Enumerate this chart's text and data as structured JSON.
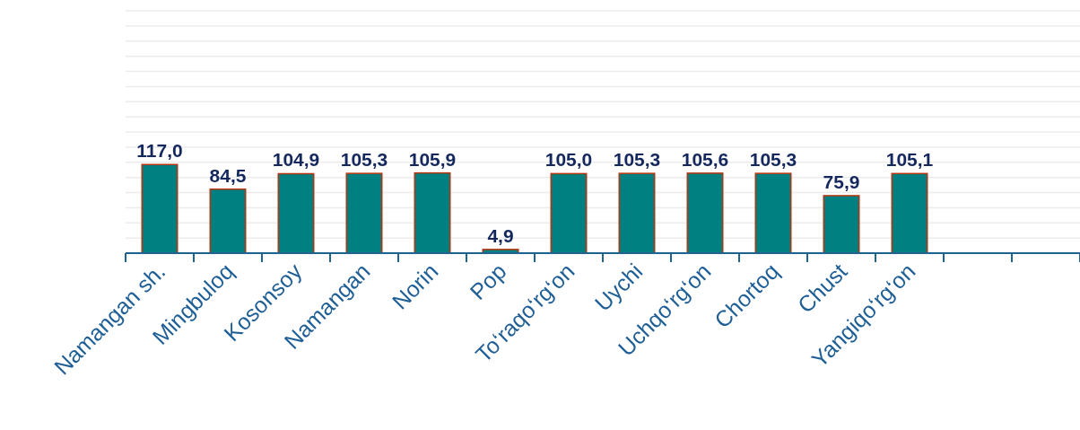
{
  "chart_data": {
    "type": "bar",
    "categories": [
      "Namangan sh.",
      "Mingbuloq",
      "Kosonsoy",
      "Namangan",
      "Norin",
      "Pop",
      "To‘raqo‘rg‘on",
      "Uychi",
      "Uchqo‘rg‘on",
      "Chortoq",
      "Chust",
      "Yangiqo‘rg‘on",
      null,
      null
    ],
    "values": [
      117.0,
      84.5,
      104.9,
      105.3,
      105.9,
      4.9,
      105.0,
      105.3,
      105.6,
      105.3,
      75.9,
      105.1,
      null,
      null
    ],
    "value_labels": [
      "117,0",
      "84,5",
      "104,9",
      "105,3",
      "105,9",
      "4,9",
      "105,0",
      "105,3",
      "105,6",
      "105,3",
      "75,9",
      "105,1",
      null,
      null
    ],
    "color": "#008080",
    "ylim": [
      0,
      320
    ],
    "yticks": [
      {
        "value": 0,
        "label": null
      },
      {
        "value": 20,
        "label": null
      },
      {
        "value": 40,
        "label": null
      },
      {
        "value": 60,
        "label": null
      },
      {
        "value": 80,
        "label": null
      },
      {
        "value": 100,
        "label": null
      },
      {
        "value": 120,
        "label": null
      },
      {
        "value": 140,
        "label": null
      },
      {
        "value": 160,
        "label": null
      },
      {
        "value": 180,
        "label": null
      },
      {
        "value": 200,
        "label": null
      },
      {
        "value": 220,
        "label": null
      },
      {
        "value": 240,
        "label": null
      },
      {
        "value": 260,
        "label": null
      },
      {
        "value": 280,
        "label": null
      },
      {
        "value": 300,
        "label": null
      },
      {
        "value": 320,
        "label": null
      }
    ],
    "grid": "y",
    "tick_labels": "x"
  }
}
